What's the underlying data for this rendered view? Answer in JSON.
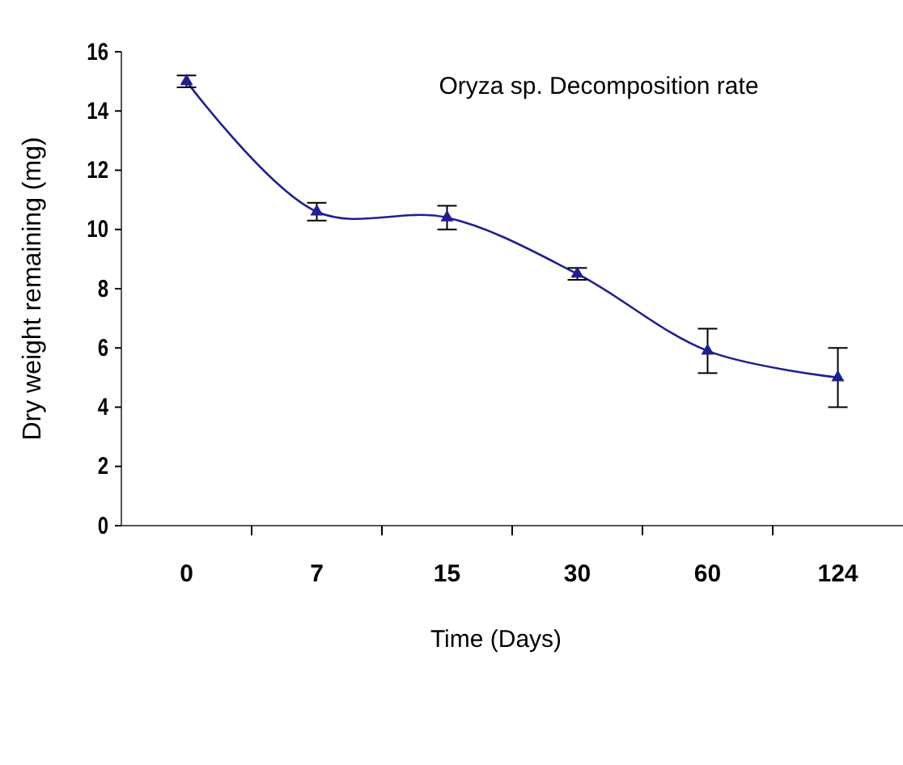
{
  "chart_data": {
    "type": "line",
    "title": "Oryza sp. Decomposition rate",
    "xlabel": "Time (Days)",
    "ylabel": "Dry weight remaining (mg)",
    "categories": [
      "0",
      "7",
      "15",
      "30",
      "60",
      "124"
    ],
    "series": [
      {
        "color": "#1f1f8f",
        "values": [
          15.0,
          10.6,
          10.4,
          8.5,
          5.9,
          5.0
        ],
        "errors": [
          0.2,
          0.3,
          0.4,
          0.2,
          0.75,
          1.0
        ]
      }
    ],
    "ylim": [
      0,
      16
    ],
    "yticks": [
      0,
      2,
      4,
      6,
      8,
      10,
      12,
      14,
      16
    ],
    "marker": "triangle",
    "line_style": "solid",
    "grid": false
  }
}
